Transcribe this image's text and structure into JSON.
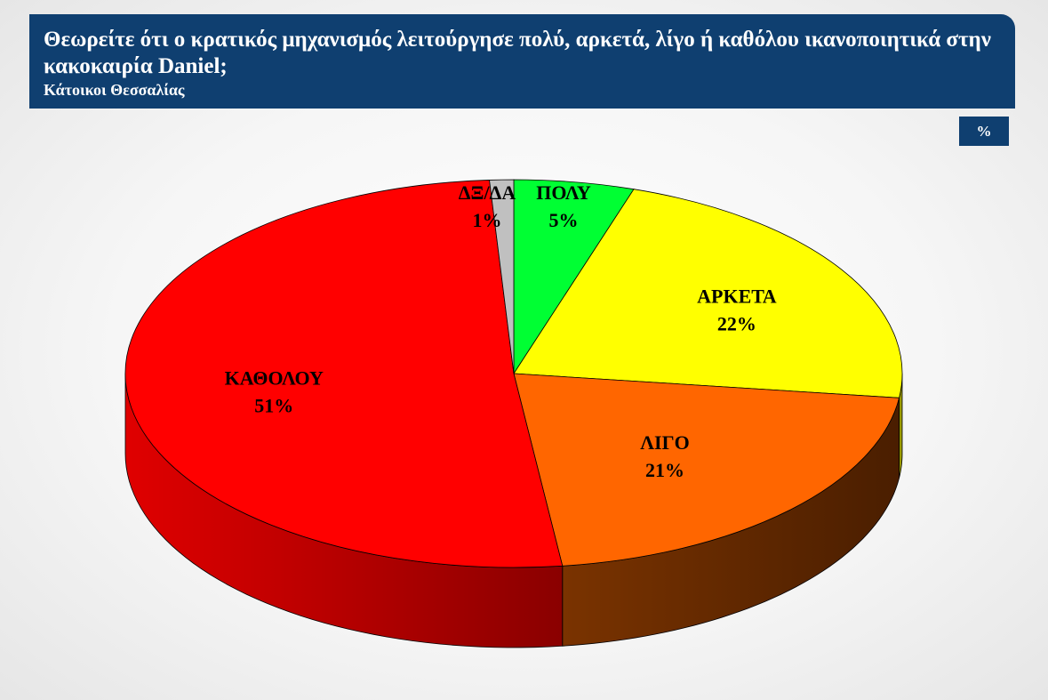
{
  "header": {
    "title": "Θεωρείτε ότι ο κρατικός μηχανισμός λειτούργησε πολύ, αρκετά, λίγο ή καθόλου ικανοποιητικά στην κακοκαιρία Daniel;",
    "subtitle": "Κάτοικοι Θεσσαλίας"
  },
  "unit_badge": "%",
  "chart_data": {
    "type": "pie",
    "title": "Θεωρείτε ότι ο κρατικός μηχανισμός λειτούργησε πολύ, αρκετά, λίγο ή καθόλου ικανοποιητικά στην κακοκαιρία Daniel;",
    "subtitle": "Κάτοικοι Θεσσαλίας",
    "unit": "%",
    "slices": [
      {
        "label": "ΠΟΛΥ",
        "value": 5,
        "value_label": "5%",
        "color": "#00ff33",
        "side_color": "#009922"
      },
      {
        "label": "ΑΡΚΕΤΑ",
        "value": 22,
        "value_label": "22%",
        "color": "#ffff00",
        "side_color": "#999900"
      },
      {
        "label": "ΛΙΓΟ",
        "value": 21,
        "value_label": "21%",
        "color": "#ff6600",
        "side_color": "#6b2e00"
      },
      {
        "label": "ΚΑΘΟΛΟΥ",
        "value": 51,
        "value_label": "51%",
        "color": "#ff0000",
        "side_color": "#a00000"
      },
      {
        "label": "ΔΞ/ΔΑ",
        "value": 1,
        "value_label": "1%",
        "color": "#c0c0c0",
        "side_color": "#808080"
      }
    ],
    "style": "3d",
    "start": "12 o'clock",
    "direction": "clockwise"
  }
}
